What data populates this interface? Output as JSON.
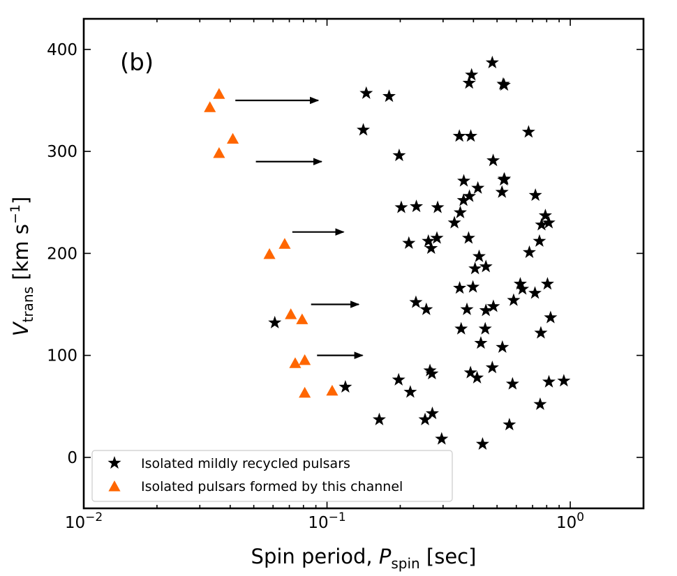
{
  "chart_data": {
    "type": "scatter",
    "panel_label": "(b)",
    "xlabel": {
      "main": "Spin period, ",
      "var": "P",
      "sub": "spin",
      "unit": " [sec]"
    },
    "ylabel": {
      "var": "V",
      "sub": "trans",
      "unit_open": " [km s",
      "unit_exp": "−1",
      "unit_close": "]"
    },
    "x_scale": "log",
    "xlim": [
      0.01,
      2.0
    ],
    "ylim": [
      -50,
      430
    ],
    "x_ticks": [
      {
        "value": 0.01,
        "base": "10",
        "exp": "−2"
      },
      {
        "value": 0.1,
        "base": "10",
        "exp": "−1"
      },
      {
        "value": 1,
        "base": "10",
        "exp": "0"
      }
    ],
    "y_ticks": [
      {
        "value": 0,
        "label": "0"
      },
      {
        "value": 100,
        "label": "100"
      },
      {
        "value": 200,
        "label": "200"
      },
      {
        "value": 300,
        "label": "300"
      },
      {
        "value": 400,
        "label": "400"
      }
    ],
    "grid": false,
    "legend_position": "lower-left",
    "colors": {
      "stars": "#000000",
      "triangles": "#ff6600",
      "axes": "#000000"
    },
    "series": [
      {
        "name": "Isolated mildly recycled pulsars",
        "marker": "star",
        "points": [
          [
            0.478,
            387
          ],
          [
            0.393,
            375
          ],
          [
            0.384,
            367
          ],
          [
            0.53,
            366
          ],
          [
            0.535,
            365
          ],
          [
            0.145,
            357
          ],
          [
            0.18,
            354
          ],
          [
            0.141,
            321
          ],
          [
            0.674,
            319
          ],
          [
            0.35,
            315
          ],
          [
            0.39,
            315
          ],
          [
            0.198,
            296
          ],
          [
            0.482,
            291
          ],
          [
            0.536,
            273
          ],
          [
            0.533,
            272
          ],
          [
            0.365,
            271
          ],
          [
            0.417,
            264
          ],
          [
            0.524,
            260
          ],
          [
            0.719,
            257
          ],
          [
            0.385,
            256
          ],
          [
            0.364,
            252
          ],
          [
            0.202,
            245
          ],
          [
            0.233,
            246
          ],
          [
            0.285,
            245
          ],
          [
            0.353,
            240
          ],
          [
            0.79,
            237
          ],
          [
            0.334,
            230
          ],
          [
            0.816,
            230
          ],
          [
            0.762,
            228
          ],
          [
            0.283,
            215
          ],
          [
            0.382,
            215
          ],
          [
            0.217,
            210
          ],
          [
            0.261,
            212
          ],
          [
            0.747,
            212
          ],
          [
            0.268,
            205
          ],
          [
            0.679,
            201
          ],
          [
            0.422,
            197
          ],
          [
            0.45,
            187
          ],
          [
            0.406,
            185
          ],
          [
            0.623,
            170
          ],
          [
            0.806,
            170
          ],
          [
            0.351,
            166
          ],
          [
            0.398,
            167
          ],
          [
            0.636,
            165
          ],
          [
            0.716,
            161
          ],
          [
            0.585,
            154
          ],
          [
            0.232,
            152
          ],
          [
            0.483,
            148
          ],
          [
            0.256,
            145
          ],
          [
            0.376,
            145
          ],
          [
            0.45,
            144
          ],
          [
            0.83,
            137
          ],
          [
            0.356,
            126
          ],
          [
            0.447,
            126
          ],
          [
            0.757,
            122
          ],
          [
            0.429,
            112
          ],
          [
            0.526,
            108
          ],
          [
            0.061,
            132
          ],
          [
            0.478,
            88
          ],
          [
            0.265,
            85
          ],
          [
            0.27,
            82
          ],
          [
            0.389,
            83
          ],
          [
            0.414,
            78
          ],
          [
            0.197,
            76
          ],
          [
            0.119,
            69
          ],
          [
            0.579,
            72
          ],
          [
            0.817,
            74
          ],
          [
            0.941,
            75
          ],
          [
            0.22,
            64
          ],
          [
            0.752,
            52
          ],
          [
            0.271,
            43
          ],
          [
            0.253,
            37
          ],
          [
            0.164,
            37
          ],
          [
            0.562,
            32
          ],
          [
            0.296,
            18
          ],
          [
            0.436,
            13
          ]
        ]
      },
      {
        "name": "Isolated pulsars formed by this channel",
        "marker": "triangle",
        "points": [
          [
            0.036,
            356
          ],
          [
            0.033,
            343
          ],
          [
            0.041,
            312
          ],
          [
            0.036,
            298
          ],
          [
            0.067,
            209
          ],
          [
            0.058,
            199
          ],
          [
            0.071,
            140
          ],
          [
            0.079,
            135
          ],
          [
            0.081,
            95
          ],
          [
            0.074,
            92
          ],
          [
            0.081,
            63
          ],
          [
            0.105,
            65
          ]
        ]
      }
    ],
    "arrows": [
      {
        "x_start": 0.042,
        "x_end": 0.092,
        "y": 350
      },
      {
        "x_start": 0.051,
        "x_end": 0.095,
        "y": 290
      },
      {
        "x_start": 0.072,
        "x_end": 0.117,
        "y": 221
      },
      {
        "x_start": 0.086,
        "x_end": 0.135,
        "y": 150
      },
      {
        "x_start": 0.091,
        "x_end": 0.14,
        "y": 100
      }
    ]
  }
}
